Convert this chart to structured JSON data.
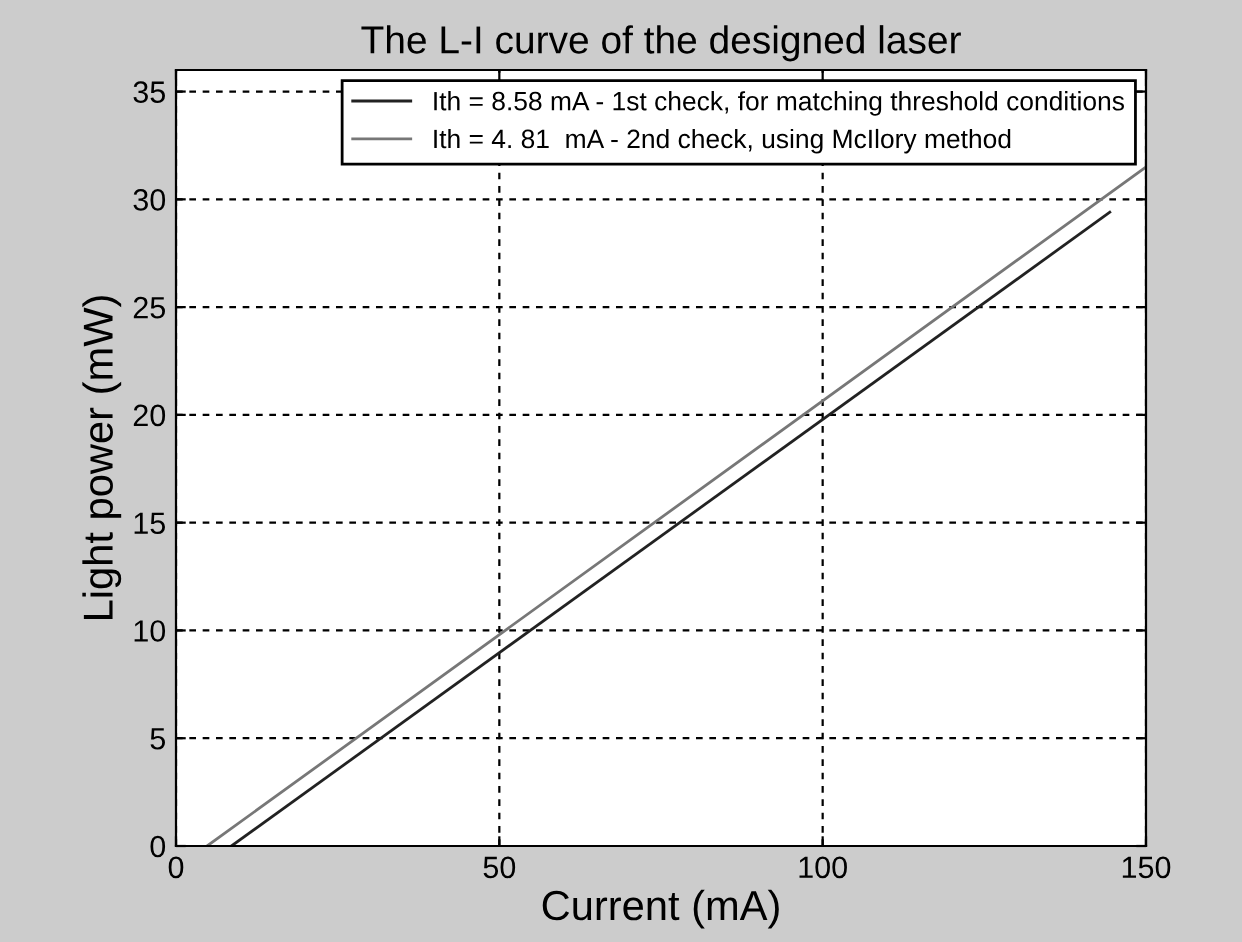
{
  "chart_data": {
    "type": "line",
    "title": "The L-I curve of the designed laser",
    "xlabel": "Current (mA)",
    "ylabel": "Light power (mW)",
    "series": [
      {
        "name": "Ith = 8.58 mA - 1st check, for matching threshold conditions",
        "color": "#222222",
        "x": [
          8.58,
          144.4
        ],
        "values": [
          0,
          29.4
        ]
      },
      {
        "name": "Ith = 4. 81  mA - 2nd check, using McIlory method",
        "color": "#777777",
        "x": [
          4.81,
          150
        ],
        "values": [
          0,
          31.5
        ]
      }
    ],
    "xlim": [
      0,
      150
    ],
    "ylim": [
      0,
      36
    ],
    "xticks": [
      0,
      50,
      100,
      150
    ],
    "yticks": [
      0,
      5,
      10,
      15,
      20,
      25,
      30,
      35
    ],
    "grid": true,
    "legend": "top right",
    "line_style": "solid",
    "marker": "none"
  }
}
